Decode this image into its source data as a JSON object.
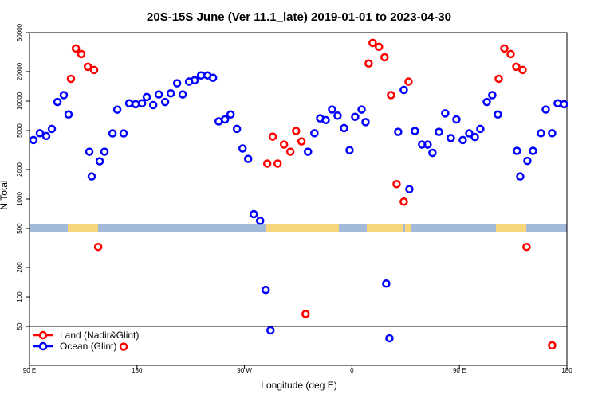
{
  "chart_data": {
    "type": "scatter",
    "title": "20S-15S June (Ver 11.1_late)   2019-01-01 to 2023-04-30",
    "x_label": "Longitude (deg E)",
    "y_label": "N Total",
    "log_y": true,
    "legend": "bottom-left",
    "xlim": [
      90,
      540
    ],
    "ylim": [
      20,
      50000
    ],
    "xticks": [
      {
        "value": 90,
        "label": "90 E"
      },
      {
        "value": 180,
        "label": "180"
      },
      {
        "value": 270,
        "label": "90 W"
      },
      {
        "value": 360,
        "label": "0"
      },
      {
        "value": 450,
        "label": "90 E"
      },
      {
        "value": 540,
        "label": "180"
      }
    ],
    "yticks": [
      50,
      100,
      200,
      500,
      1000,
      2000,
      5000,
      10000,
      20000,
      50000
    ],
    "series": [
      {
        "name": "Land (Nadir&Glint)",
        "color": "#ff0000",
        "x": [
          124.7,
          128.8,
          133.4,
          138.8,
          144.1,
          147.5,
          168.8,
          289.1,
          293.7,
          297.8,
          303.1,
          308.4,
          313.2,
          317.8,
          321.2,
          374,
          377.3,
          382.6,
          387.3,
          392.7,
          397.4,
          403.4,
          407.4,
          482.9,
          487.6,
          492.9,
          497.6,
          502.9,
          506.2,
          527.6
        ],
        "values": [
          16900,
          34500,
          30200,
          22400,
          20800,
          324,
          31,
          2300,
          4340,
          2300,
          3600,
          3040,
          4950,
          3880,
          67,
          24200,
          39300,
          35800,
          28000,
          11500,
          1420,
          940,
          15800,
          16900,
          34500,
          30200,
          22400,
          20800,
          324,
          32
        ]
      },
      {
        "name": "Ocean (Glint)",
        "color": "#0000ff",
        "x": [
          93.3,
          98.7,
          104,
          108.7,
          113.4,
          118.7,
          122.7,
          140.1,
          142.1,
          148.8,
          152.8,
          159.5,
          163.5,
          168.8,
          173.5,
          178.9,
          184.2,
          188.2,
          193.6,
          198.3,
          203.6,
          208.3,
          213.6,
          218.3,
          223.6,
          228.3,
          233.6,
          239,
          243.7,
          248.4,
          253.7,
          258.4,
          263.7,
          268.4,
          273.1,
          277.8,
          283.1,
          287.8,
          291.8,
          323.2,
          328.6,
          333.3,
          338,
          343.3,
          348,
          353.4,
          358,
          362.7,
          368.1,
          371.4,
          388.7,
          391.4,
          398.7,
          403.4,
          408.1,
          412.7,
          418.7,
          423.4,
          427.4,
          432.8,
          438.1,
          442.8,
          447.5,
          452.8,
          458.2,
          462.9,
          467.5,
          472.9,
          477.5,
          482.2,
          498.2,
          500.9,
          506.9,
          511.6,
          518.3,
          522.3,
          527.6,
          532.3,
          537.6
        ],
        "values": [
          4000,
          4700,
          4400,
          5200,
          9800,
          11500,
          7300,
          3040,
          1700,
          2430,
          3040,
          4680,
          8180,
          4680,
          9500,
          9300,
          9500,
          11000,
          9100,
          11700,
          9800,
          12000,
          15200,
          11700,
          15800,
          16300,
          18300,
          18300,
          17300,
          6200,
          6500,
          7300,
          5200,
          3280,
          2570,
          700,
          600,
          118,
          45.6,
          3040,
          4700,
          6670,
          6400,
          8200,
          7100,
          5300,
          3150,
          6900,
          8200,
          6100,
          137,
          37.8,
          4850,
          13000,
          1260,
          4950,
          3600,
          3600,
          2960,
          4850,
          7500,
          4200,
          6500,
          4000,
          4680,
          4300,
          5200,
          9800,
          11500,
          7300,
          3100,
          1700,
          2450,
          3100,
          4700,
          8200,
          4700,
          9500,
          9300
        ]
      }
    ]
  }
}
